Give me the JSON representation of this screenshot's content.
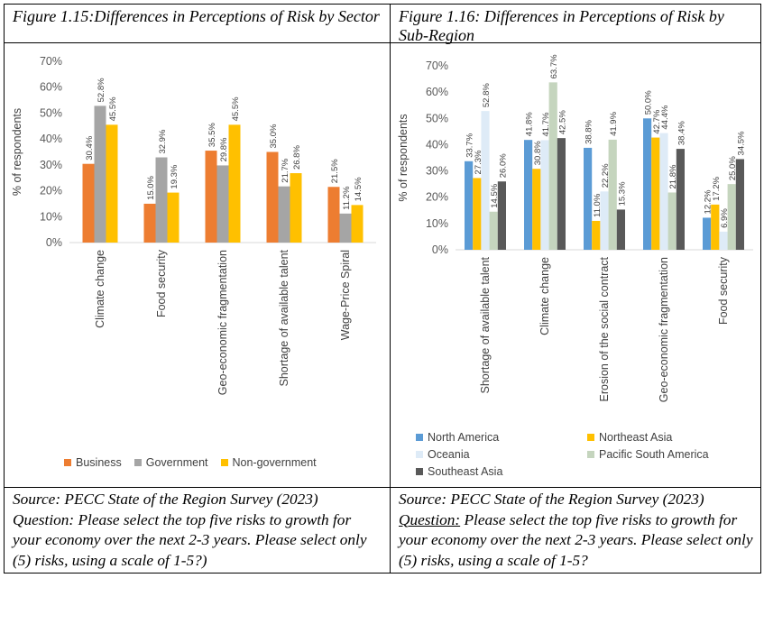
{
  "figures": {
    "left": {
      "caption": "Figure 1.15:Differences in Perceptions of Risk by Sector",
      "source": "Source: PECC State of the Region Survey (2023)",
      "question_label": "Question:",
      "question_text": " Please select the top five risks to growth for your economy over the next 2-3 years. Please select only (5) risks, using a scale of 1-5?)"
    },
    "right": {
      "caption": "Figure 1.16: Differences in Perceptions of Risk by Sub-Region",
      "source": "Source: PECC State of the Region Survey (2023)",
      "question_label": "Question:",
      "question_text": " Please select the top five risks to growth for your economy over the next 2-3 years. Please select only (5) risks, using a scale of 1-5?"
    }
  },
  "chart_data": [
    {
      "type": "bar",
      "title": "",
      "ylabel": "% of respondents",
      "ylim": [
        0,
        70
      ],
      "yticks": [
        "0%",
        "10%",
        "20%",
        "30%",
        "40%",
        "50%",
        "60%",
        "70%"
      ],
      "grid": false,
      "legend": "bottom",
      "categories": [
        "Climate change",
        "Food security",
        "Geo-economic fragmentation",
        "Shortage of available talent",
        "Wage-Price Spiral"
      ],
      "series": [
        {
          "name": "Business",
          "color": "#ED7D31",
          "values": [
            30.4,
            15.0,
            35.5,
            35.0,
            21.5
          ],
          "labels": [
            "30.4%",
            "15.0%",
            "35.5%",
            "35.0%",
            "21.5%"
          ]
        },
        {
          "name": "Government",
          "color": "#A5A5A5",
          "values": [
            52.8,
            32.9,
            29.8,
            21.7,
            11.2
          ],
          "labels": [
            "52.8%",
            "32.9%",
            "29.8%",
            "21.7%",
            "11.2%"
          ]
        },
        {
          "name": "Non-government",
          "color": "#FFC000",
          "values": [
            45.5,
            19.3,
            45.5,
            26.8,
            14.5
          ],
          "labels": [
            "45.5%",
            "19.3%",
            "45.5%",
            "26.8%",
            "14.5%"
          ]
        }
      ]
    },
    {
      "type": "bar",
      "title": "",
      "ylabel": "% of respondents",
      "ylim": [
        0,
        70
      ],
      "yticks": [
        "0%",
        "10%",
        "20%",
        "30%",
        "40%",
        "50%",
        "60%",
        "70%"
      ],
      "grid": false,
      "legend": "bottom",
      "categories": [
        "Shortage of available talent",
        "Climate change",
        "Erosion of the social contract",
        "Geo-economic fragmentation",
        "Food security"
      ],
      "series": [
        {
          "name": "North America",
          "color": "#5B9BD5",
          "values": [
            33.7,
            41.8,
            38.8,
            50.0,
            12.2
          ],
          "labels": [
            "33.7%",
            "41.8%",
            "38.8%",
            "50.0%",
            "12.2%"
          ]
        },
        {
          "name": "Northeast Asia",
          "color": "#FFC000",
          "values": [
            27.3,
            30.8,
            11.0,
            42.7,
            17.2
          ],
          "labels": [
            "27.3%",
            "30.8%",
            "11.0%",
            "42.7%",
            "17.2%"
          ]
        },
        {
          "name": "Oceania",
          "color": "#DEEBF7",
          "values": [
            52.8,
            41.7,
            22.2,
            44.4,
            6.9
          ],
          "labels": [
            "52.8%",
            "41.7%",
            "22.2%",
            "44.4%",
            "6.9%"
          ]
        },
        {
          "name": "Pacific South America",
          "color": "#C5D5BE",
          "values": [
            14.5,
            63.7,
            41.9,
            21.8,
            25.0
          ],
          "labels": [
            "14.5%",
            "63.7%",
            "41.9%",
            "21.8%",
            "25.0%"
          ]
        },
        {
          "name": "Southeast Asia",
          "color": "#595959",
          "values": [
            26.0,
            42.5,
            15.3,
            38.4,
            34.5
          ],
          "labels": [
            "26.0%",
            "42.5%",
            "15.3%",
            "38.4%",
            "34.5%"
          ]
        }
      ]
    }
  ]
}
